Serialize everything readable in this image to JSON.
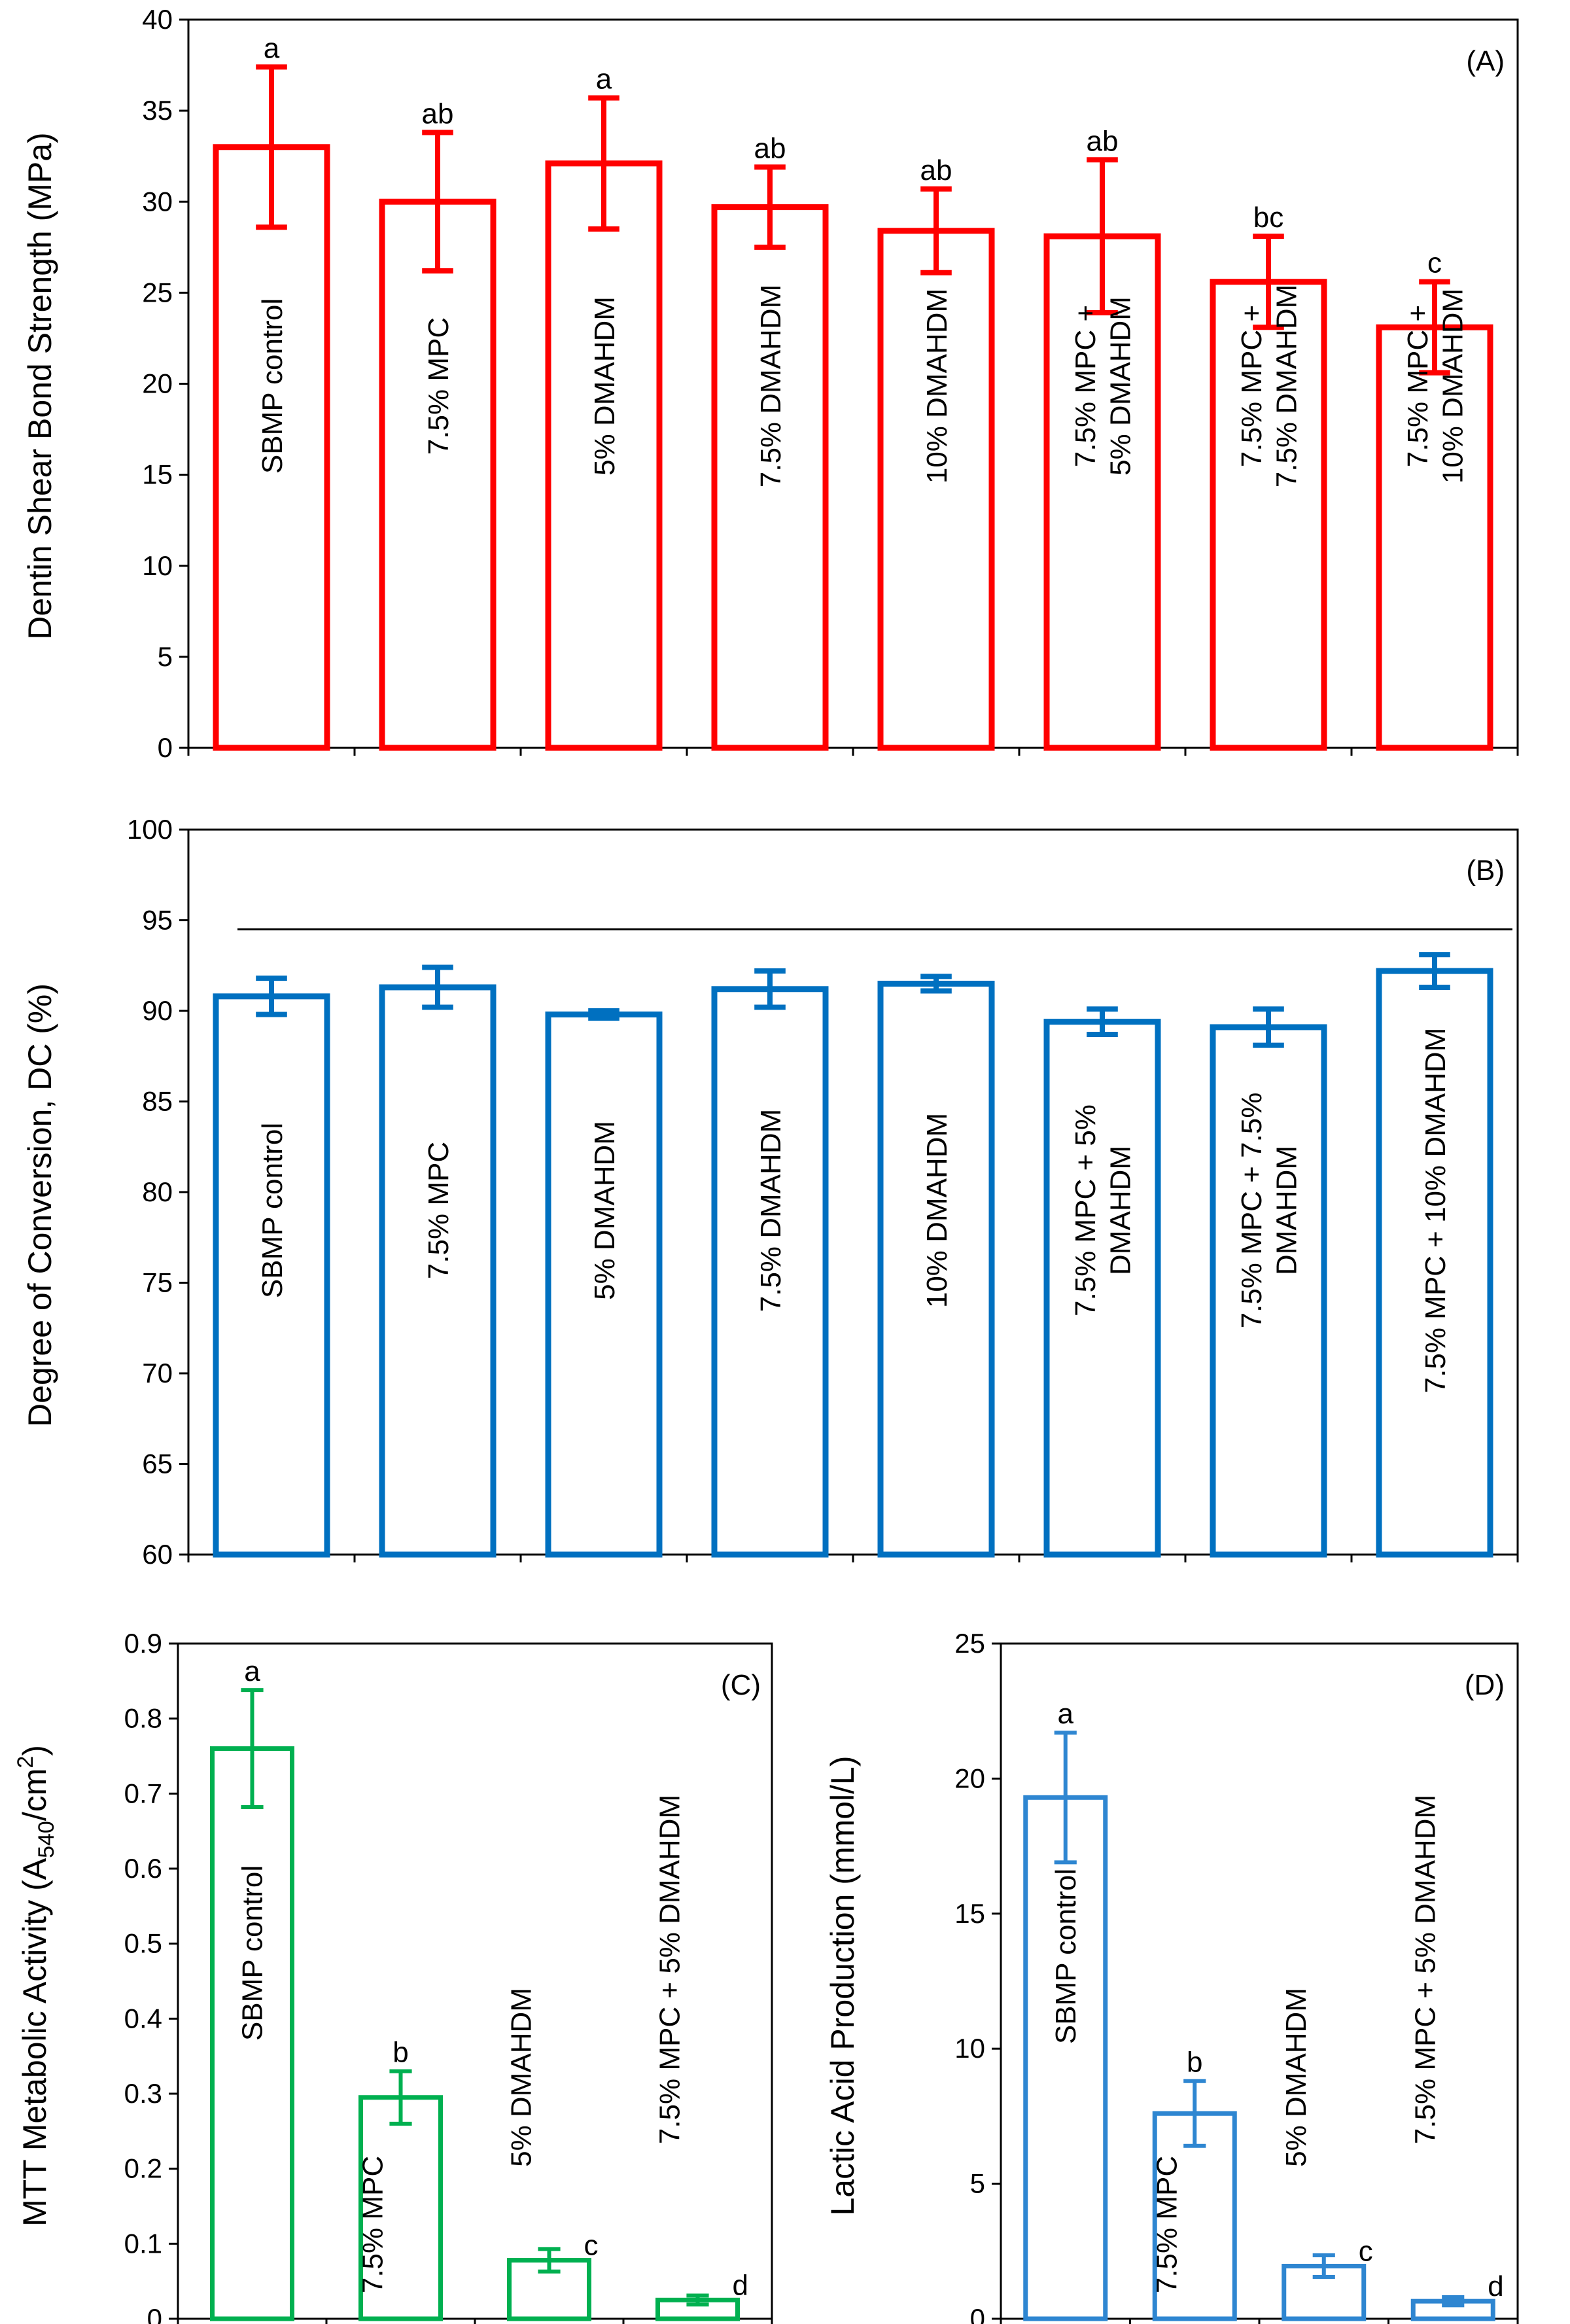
{
  "colors": {
    "A": "#ff0000",
    "B": "#0070c0",
    "C": "#00b050",
    "D": "#2e86d1"
  },
  "chart_data": [
    {
      "id": "A",
      "type": "bar",
      "panel_tag": "(A)",
      "ylabel": "Dentin Shear Bond Strength (MPa)",
      "ylim": [
        0,
        40
      ],
      "yticks": [
        "0",
        "5",
        "10",
        "15",
        "20",
        "25",
        "30",
        "35",
        "40"
      ],
      "categories": [
        [
          "SBMP control"
        ],
        [
          "7.5% MPC"
        ],
        [
          "5% DMAHDM"
        ],
        [
          "7.5% DMAHDM"
        ],
        [
          "10% DMAHDM"
        ],
        [
          "7.5% MPC +",
          "5% DMAHDM"
        ],
        [
          "7.5% MPC +",
          "7.5% DMAHDM"
        ],
        [
          "7.5% MPC +",
          "10% DMAHDM"
        ]
      ],
      "values": [
        33.0,
        30.0,
        32.1,
        29.7,
        28.4,
        28.1,
        25.6,
        23.1
      ],
      "errors": [
        4.4,
        3.8,
        3.6,
        2.2,
        2.3,
        4.2,
        2.5,
        2.5
      ],
      "letters": [
        "a",
        "ab",
        "a",
        "ab",
        "ab",
        "ab",
        "bc",
        "c"
      ]
    },
    {
      "id": "B",
      "type": "bar",
      "panel_tag": "(B)",
      "ylabel": "Degree of Conversion, DC (%)",
      "ylim": [
        60,
        100
      ],
      "yticks": [
        "60",
        "65",
        "70",
        "75",
        "80",
        "85",
        "90",
        "95",
        "100"
      ],
      "reference_line": 94.5,
      "categories": [
        [
          "SBMP control"
        ],
        [
          "7.5% MPC"
        ],
        [
          "5% DMAHDM"
        ],
        [
          "7.5% DMAHDM"
        ],
        [
          "10% DMAHDM"
        ],
        [
          "7.5% MPC + 5%",
          "DMAHDM"
        ],
        [
          "7.5% MPC + 7.5%",
          "DMAHDM"
        ],
        [
          "7.5% MPC + 10% DMAHDM"
        ]
      ],
      "values": [
        90.8,
        91.3,
        89.8,
        91.2,
        91.5,
        89.4,
        89.1,
        92.2
      ],
      "errors": [
        1.0,
        1.1,
        0.2,
        1.0,
        0.4,
        0.7,
        1.0,
        0.9
      ],
      "letters": []
    },
    {
      "id": "C",
      "type": "bar",
      "panel_tag": "(C)",
      "ylabel_main": "MTT Metabolic Activity (A",
      "ylabel_sub": "540",
      "ylabel_mid": "/cm",
      "ylabel_sup": "2",
      "ylabel_end": ")",
      "ylim": [
        0,
        0.9
      ],
      "yticks": [
        "0",
        "0.1",
        "0.2",
        "0.3",
        "0.4",
        "0.5",
        "0.6",
        "0.7",
        "0.8",
        "0.9"
      ],
      "categories": [
        [
          "SBMP control"
        ],
        [
          "7.5% MPC"
        ],
        [
          "5% DMAHDM"
        ],
        [
          "7.5% MPC + 5% DMAHDM"
        ]
      ],
      "values": [
        0.76,
        0.295,
        0.078,
        0.025
      ],
      "errors": [
        0.078,
        0.035,
        0.015,
        0.006
      ],
      "letters": [
        "a",
        "b",
        "c",
        "d"
      ]
    },
    {
      "id": "D",
      "type": "bar",
      "panel_tag": "(D)",
      "ylabel": "Lactic Acid Production (mmol/L)",
      "ylim": [
        0,
        25
      ],
      "yticks": [
        "0",
        "5",
        "10",
        "15",
        "20",
        "25"
      ],
      "categories": [
        [
          "SBMP control"
        ],
        [
          "7.5% MPC"
        ],
        [
          "5% DMAHDM"
        ],
        [
          "7.5% MPC + 5% DMAHDM"
        ]
      ],
      "values": [
        19.3,
        7.6,
        1.95,
        0.65
      ],
      "errors": [
        2.4,
        1.2,
        0.4,
        0.15
      ],
      "letters": [
        "a",
        "b",
        "c",
        "d"
      ]
    }
  ]
}
